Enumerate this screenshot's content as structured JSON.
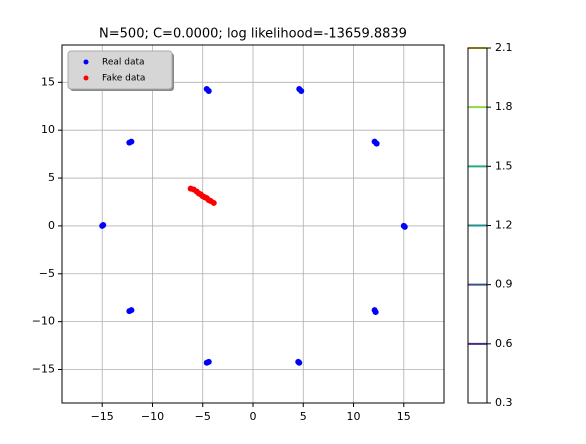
{
  "chart_data": {
    "type": "scatter",
    "title": "N=500; C=0.0000; log likelihood=-13659.8839",
    "xlim": [
      -19,
      19
    ],
    "ylim": [
      -18.5,
      18.9
    ],
    "xticks": [
      {
        "value": -15,
        "label": "−15"
      },
      {
        "value": -10,
        "label": "−10"
      },
      {
        "value": -5,
        "label": "−5"
      },
      0,
      5,
      10,
      15
    ],
    "yticks": [
      {
        "value": -15,
        "label": "−15"
      },
      {
        "value": -10,
        "label": "−10"
      },
      {
        "value": -5,
        "label": "−5"
      },
      0,
      5,
      10,
      15
    ],
    "grid": true,
    "legend": "upper left",
    "series": [
      {
        "name": "Real data",
        "color": "#0000ff",
        "x": [
          -15.0,
          -14.9,
          15.0,
          15.1,
          4.6,
          4.8,
          -4.6,
          -4.4,
          12.1,
          12.3,
          -12.1,
          -12.3,
          12.1,
          12.2,
          -12.1,
          -12.3,
          4.6,
          4.5,
          -4.6,
          -4.4
        ],
        "y": [
          0.0,
          0.1,
          0.0,
          -0.1,
          14.3,
          14.1,
          14.3,
          14.1,
          8.8,
          8.6,
          8.8,
          8.7,
          -8.8,
          -9.0,
          -8.8,
          -8.9,
          -14.3,
          -14.2,
          -14.3,
          -14.2
        ]
      },
      {
        "name": "Fake data",
        "color": "#ff0000",
        "x": [
          -6.2,
          -5.9,
          -5.6,
          -5.4,
          -5.2,
          -5.0,
          -4.8,
          -4.6,
          -4.4,
          -4.2,
          -3.9
        ],
        "y": [
          3.9,
          3.8,
          3.6,
          3.4,
          3.3,
          3.1,
          3.0,
          2.9,
          2.7,
          2.6,
          2.4
        ]
      }
    ],
    "colorbar": {
      "lim": [
        0.3,
        2.1
      ],
      "ticks": [
        0.3,
        0.6,
        0.9,
        1.2,
        1.5,
        1.8,
        2.1
      ],
      "levels": [
        0.6,
        0.9,
        1.2,
        1.5,
        1.8,
        2.1
      ],
      "level_colors": [
        "#472d7b",
        "#3b528b",
        "#21908d",
        "#27ad81",
        "#8fd744",
        "#fde725"
      ]
    }
  }
}
